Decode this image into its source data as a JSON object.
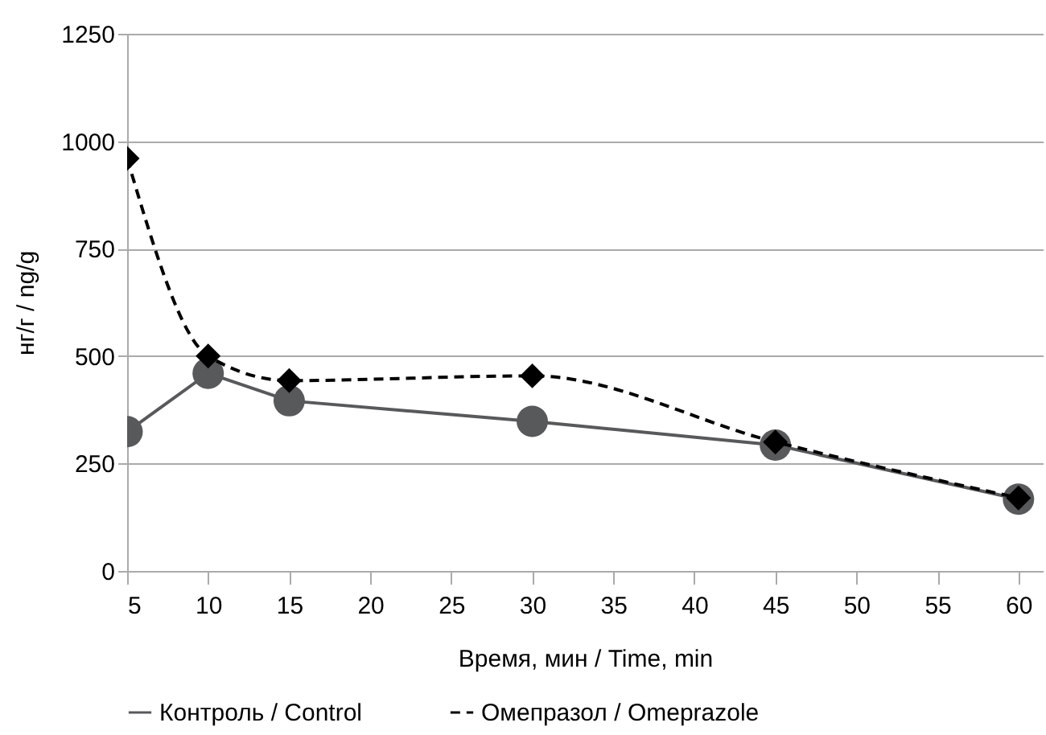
{
  "chart_data": {
    "type": "line",
    "xlabel": "Время, мин / Time, min",
    "ylabel": "нг/г / ng/g",
    "x": [
      5,
      10,
      15,
      30,
      45,
      60
    ],
    "series": [
      {
        "name": "Контроль / Control",
        "color": "#58595b",
        "marker": "circle",
        "line_style": "solid",
        "values": [
          324,
          460,
          396,
          348,
          293,
          167
        ]
      },
      {
        "name": "Омепразол / Omeprazole",
        "color": "#000000",
        "marker": "diamond",
        "line_style": "dashed",
        "values": [
          960,
          500,
          443,
          454,
          300,
          170
        ]
      }
    ],
    "xlim": [
      5,
      61.5
    ],
    "xticks": [
      5,
      10,
      15,
      20,
      25,
      30,
      35,
      40,
      45,
      50,
      55,
      60
    ],
    "ylim": [
      0,
      1250
    ],
    "yticks": [
      0,
      250,
      500,
      750,
      1000,
      1250
    ],
    "grid": "y",
    "legend": "bottom"
  }
}
